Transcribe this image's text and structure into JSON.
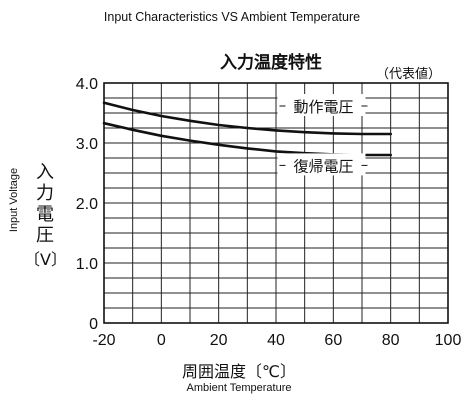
{
  "chart_data": {
    "type": "line",
    "title": "Input Characteristics VS Ambient Temperature",
    "title_jp": "入力温度特性",
    "note": "（代表値）",
    "xlabel": "周囲温度〔℃〕",
    "xlabel_en": "Ambient Temperature",
    "ylabel": "入力電圧",
    "ylabel_en": "Input Voltage",
    "yunit": "〔V〕",
    "xlim": [
      -20,
      100
    ],
    "ylim": [
      0,
      4.0
    ],
    "x_ticks": [
      "-20",
      "0",
      "20",
      "40",
      "60",
      "80",
      "100"
    ],
    "y_ticks": [
      "0",
      "1.0",
      "2.0",
      "3.0",
      "4.0"
    ],
    "grid": true,
    "series": [
      {
        "name": "動作電圧",
        "x": [
          -20,
          -10,
          0,
          10,
          20,
          30,
          40,
          50,
          60,
          70,
          80
        ],
        "y": [
          3.67,
          3.55,
          3.45,
          3.37,
          3.3,
          3.25,
          3.21,
          3.18,
          3.16,
          3.15,
          3.15
        ]
      },
      {
        "name": "復帰電圧",
        "x": [
          -20,
          -10,
          0,
          10,
          20,
          30,
          40,
          50,
          60,
          70,
          80
        ],
        "y": [
          3.33,
          3.22,
          3.12,
          3.04,
          2.97,
          2.91,
          2.86,
          2.83,
          2.81,
          2.8,
          2.8
        ]
      }
    ]
  }
}
